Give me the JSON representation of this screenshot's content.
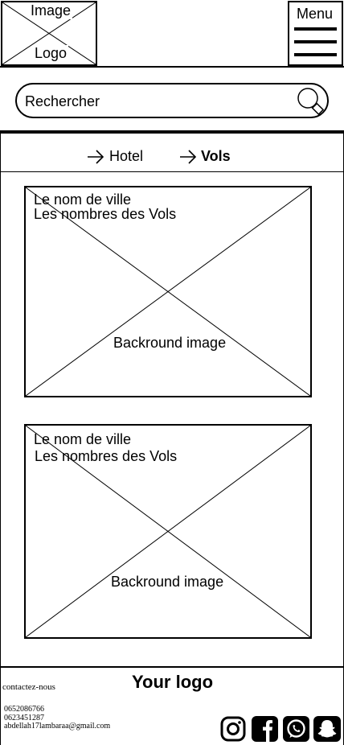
{
  "header": {
    "logo_line1": "Image",
    "logo_line2": "Logo",
    "menu_label": "Menu"
  },
  "search": {
    "placeholder": "Rechercher"
  },
  "tabs": [
    {
      "label": "Hotel",
      "active": false
    },
    {
      "label": "Vols",
      "active": true
    }
  ],
  "cards": [
    {
      "city": "Le nom de ville",
      "flights": "Les nombres des Vols",
      "image_label": "Backround image"
    },
    {
      "city": "Le nom de ville",
      "flights": "Les nombres des Vols",
      "image_label": "Backround image"
    }
  ],
  "footer": {
    "contact_title": "contactez-nous",
    "phone1": "0652086766",
    "phone2": "0623451287",
    "email": "abdellah17lambaraa@gmail.com",
    "logo_text": "Your logo",
    "social_icons": [
      "instagram-icon",
      "facebook-icon",
      "whatsapp-icon",
      "snapchat-icon"
    ]
  }
}
